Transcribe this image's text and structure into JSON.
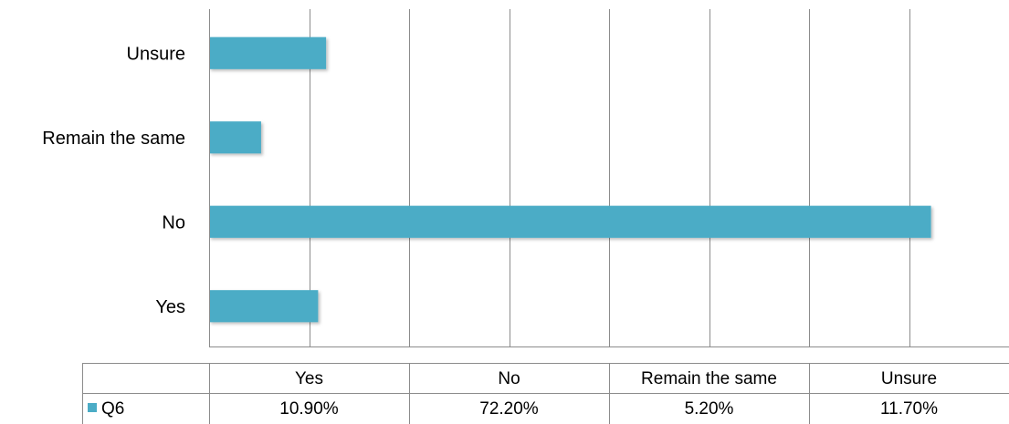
{
  "chart_data": {
    "type": "bar",
    "orientation": "horizontal",
    "categories": [
      "Yes",
      "No",
      "Remain the same",
      "Unsure"
    ],
    "series": [
      {
        "name": "Q6",
        "values": [
          10.9,
          72.2,
          5.2,
          11.7
        ],
        "labels": [
          "10.90%",
          "72.20%",
          "5.20%",
          "11.70%"
        ],
        "color": "#4BACC6"
      }
    ],
    "xlim": [
      0,
      80
    ],
    "grid": true,
    "data_table": true
  }
}
